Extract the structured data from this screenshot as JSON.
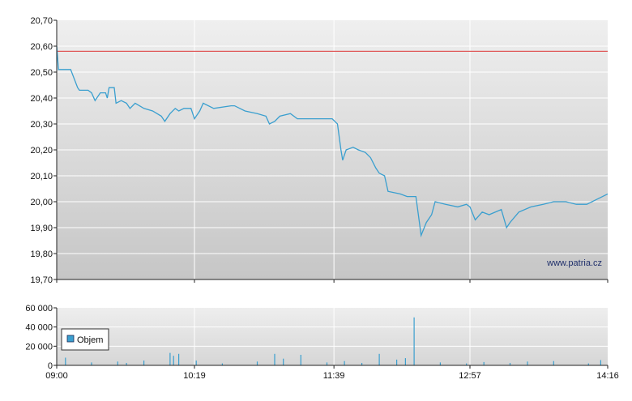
{
  "chart_data": [
    {
      "type": "line",
      "x_ticks": [
        "09:00",
        "10:19",
        "11:39",
        "12:57",
        "14:16"
      ],
      "y_ticks": [
        "20,70",
        "20,60",
        "20,50",
        "20,40",
        "20,30",
        "20,20",
        "20,10",
        "20,00",
        "19,90",
        "19,80",
        "19,70"
      ],
      "ylim": [
        19.7,
        20.7
      ],
      "grid": true,
      "reference_line": {
        "value": 20.58,
        "color": "#e05a5a"
      },
      "series": [
        {
          "color": "#3a9fcf",
          "points": [
            [
              "09:00",
              20.6
            ],
            [
              "09:01",
              20.51
            ],
            [
              "09:08",
              20.51
            ],
            [
              "09:12",
              20.44
            ],
            [
              "09:13",
              20.43
            ],
            [
              "09:18",
              20.43
            ],
            [
              "09:20",
              20.42
            ],
            [
              "09:22",
              20.39
            ],
            [
              "09:25",
              20.42
            ],
            [
              "09:28",
              20.42
            ],
            [
              "09:29",
              20.4
            ],
            [
              "09:30",
              20.44
            ],
            [
              "09:33",
              20.44
            ],
            [
              "09:34",
              20.38
            ],
            [
              "09:37",
              20.39
            ],
            [
              "09:40",
              20.38
            ],
            [
              "09:42",
              20.36
            ],
            [
              "09:45",
              20.38
            ],
            [
              "09:50",
              20.36
            ],
            [
              "09:55",
              20.35
            ],
            [
              "10:00",
              20.33
            ],
            [
              "10:02",
              20.31
            ],
            [
              "10:05",
              20.34
            ],
            [
              "10:08",
              20.36
            ],
            [
              "10:10",
              20.35
            ],
            [
              "10:13",
              20.36
            ],
            [
              "10:17",
              20.36
            ],
            [
              "10:19",
              20.32
            ],
            [
              "10:22",
              20.35
            ],
            [
              "10:24",
              20.38
            ],
            [
              "10:30",
              20.36
            ],
            [
              "10:40",
              20.37
            ],
            [
              "10:42",
              20.37
            ],
            [
              "10:48",
              20.35
            ],
            [
              "10:55",
              20.34
            ],
            [
              "11:00",
              20.33
            ],
            [
              "11:02",
              20.3
            ],
            [
              "11:05",
              20.31
            ],
            [
              "11:08",
              20.33
            ],
            [
              "11:14",
              20.34
            ],
            [
              "11:18",
              20.32
            ],
            [
              "11:35",
              20.32
            ],
            [
              "11:38",
              20.32
            ],
            [
              "11:41",
              20.3
            ],
            [
              "11:43",
              20.2
            ],
            [
              "11:44",
              20.16
            ],
            [
              "11:46",
              20.2
            ],
            [
              "11:50",
              20.21
            ],
            [
              "11:53",
              20.2
            ],
            [
              "11:57",
              20.19
            ],
            [
              "12:00",
              20.17
            ],
            [
              "12:03",
              20.13
            ],
            [
              "12:05",
              20.11
            ],
            [
              "12:08",
              20.1
            ],
            [
              "12:10",
              20.04
            ],
            [
              "12:17",
              20.03
            ],
            [
              "12:21",
              20.02
            ],
            [
              "12:26",
              20.02
            ],
            [
              "12:28",
              19.92
            ],
            [
              "12:29",
              19.87
            ],
            [
              "12:32",
              19.92
            ],
            [
              "12:35",
              19.95
            ],
            [
              "12:37",
              20.0
            ],
            [
              "12:43",
              19.99
            ],
            [
              "12:50",
              19.98
            ],
            [
              "12:55",
              19.99
            ],
            [
              "12:57",
              19.98
            ],
            [
              "13:00",
              19.93
            ],
            [
              "13:04",
              19.96
            ],
            [
              "13:08",
              19.95
            ],
            [
              "13:15",
              19.97
            ],
            [
              "13:18",
              19.9
            ],
            [
              "13:20",
              19.92
            ],
            [
              "13:25",
              19.96
            ],
            [
              "13:32",
              19.98
            ],
            [
              "13:39",
              19.99
            ],
            [
              "13:45",
              20.0
            ],
            [
              "13:52",
              20.0
            ],
            [
              "13:58",
              19.99
            ],
            [
              "14:04",
              19.99
            ],
            [
              "14:10",
              20.01
            ],
            [
              "14:16",
              20.03
            ]
          ]
        }
      ]
    },
    {
      "type": "bar",
      "x_ticks": [
        "09:00",
        "10:19",
        "11:39",
        "12:57",
        "14:16"
      ],
      "y_ticks": [
        "60 000",
        "40 000",
        "20 000",
        "0"
      ],
      "ylim": [
        0,
        60000
      ],
      "grid": true,
      "legend": {
        "position": "left",
        "label": "Objem",
        "color": "#3a9fcf"
      },
      "series": [
        {
          "name": "Objem",
          "color": "#3a9fcf",
          "points": [
            [
              "09:05",
              8000
            ],
            [
              "09:20",
              3000
            ],
            [
              "09:35",
              4000
            ],
            [
              "09:40",
              2500
            ],
            [
              "09:50",
              5000
            ],
            [
              "10:05",
              13000
            ],
            [
              "10:07",
              10000
            ],
            [
              "10:10",
              12000
            ],
            [
              "10:20",
              5000
            ],
            [
              "10:35",
              2000
            ],
            [
              "10:55",
              4000
            ],
            [
              "11:05",
              12000
            ],
            [
              "11:10",
              7000
            ],
            [
              "11:20",
              11000
            ],
            [
              "11:35",
              3000
            ],
            [
              "11:45",
              4500
            ],
            [
              "11:55",
              2500
            ],
            [
              "12:05",
              12000
            ],
            [
              "12:15",
              6000
            ],
            [
              "12:20",
              7500
            ],
            [
              "12:25",
              50000
            ],
            [
              "12:40",
              3000
            ],
            [
              "12:55",
              2000
            ],
            [
              "13:05",
              3500
            ],
            [
              "13:20",
              2500
            ],
            [
              "13:30",
              4000
            ],
            [
              "13:45",
              4500
            ],
            [
              "14:05",
              2000
            ],
            [
              "14:12",
              5500
            ]
          ]
        }
      ]
    }
  ],
  "watermark": "www.patria.cz"
}
